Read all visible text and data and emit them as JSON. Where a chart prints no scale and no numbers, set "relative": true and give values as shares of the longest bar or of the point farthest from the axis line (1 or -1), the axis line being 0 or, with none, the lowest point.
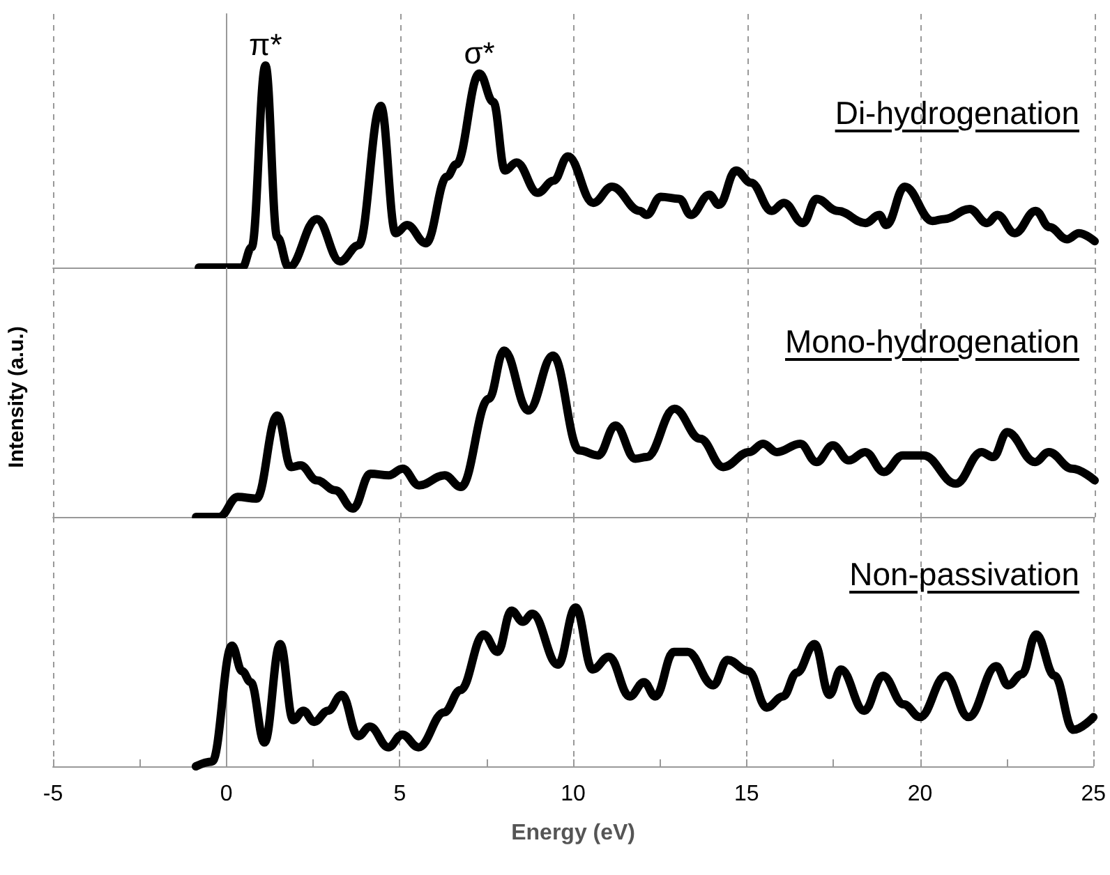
{
  "chart_data": [
    {
      "type": "line",
      "relative": true,
      "marker": "none",
      "grid": "x",
      "tick_labels": false,
      "xlim": [
        -5,
        25
      ],
      "xticks": [
        -5,
        0,
        5,
        10,
        15,
        20,
        25
      ],
      "annotations": [
        {
          "text": "π*",
          "x": 1.12,
          "y": 1.0
        },
        {
          "text": "σ*",
          "x": 7.28,
          "y": 0.96
        }
      ],
      "series": [
        {
          "name": "Di-hydrogenation",
          "color": "#000000",
          "x": [
            -0.8,
            0.45,
            0.72,
            1.12,
            1.46,
            1.79,
            2.6,
            3.27,
            3.8,
            4.44,
            4.87,
            5.2,
            5.74,
            6.35,
            6.61,
            7.28,
            7.68,
            8.02,
            8.35,
            8.96,
            9.42,
            9.83,
            10.56,
            11.1,
            11.9,
            12.1,
            12.5,
            13.04,
            13.37,
            13.9,
            14.18,
            14.67,
            15.1,
            15.7,
            16.05,
            16.6,
            16.99,
            17.6,
            18.4,
            18.8,
            19.0,
            19.53,
            20.33,
            20.67,
            21.4,
            21.9,
            22.2,
            22.7,
            23.3,
            23.7,
            24.2,
            24.55,
            25.0
          ],
          "values": [
            0,
            0,
            0.1,
            1.0,
            0.15,
            0.0,
            0.24,
            0.03,
            0.11,
            0.8,
            0.17,
            0.21,
            0.12,
            0.45,
            0.51,
            0.96,
            0.82,
            0.48,
            0.52,
            0.37,
            0.43,
            0.55,
            0.32,
            0.4,
            0.28,
            0.26,
            0.35,
            0.34,
            0.26,
            0.36,
            0.31,
            0.48,
            0.42,
            0.28,
            0.32,
            0.22,
            0.34,
            0.28,
            0.22,
            0.26,
            0.21,
            0.4,
            0.23,
            0.24,
            0.29,
            0.22,
            0.26,
            0.17,
            0.28,
            0.2,
            0.14,
            0.17,
            0.13
          ]
        }
      ]
    },
    {
      "type": "line",
      "relative": true,
      "marker": "none",
      "grid": "x",
      "tick_labels": false,
      "xlim": [
        -5,
        25
      ],
      "xticks": [
        -5,
        0,
        5,
        10,
        15,
        20,
        25
      ],
      "ylabel": "Intensity (a.u.)",
      "series": [
        {
          "name": "Mono-hydrogenation",
          "color": "#000000",
          "x": [
            -0.88,
            -0.21,
            0.32,
            0.86,
            1.46,
            1.86,
            2.13,
            2.6,
            3.13,
            3.64,
            4.14,
            4.67,
            5.07,
            5.54,
            6.28,
            6.75,
            7.55,
            7.99,
            8.69,
            9.4,
            10.16,
            10.7,
            11.2,
            11.77,
            12.1,
            12.9,
            13.64,
            14.3,
            15.05,
            15.45,
            15.85,
            16.52,
            16.99,
            17.46,
            17.92,
            18.39,
            18.93,
            19.47,
            20.07,
            21.0,
            21.74,
            22.08,
            22.48,
            23.28,
            23.68,
            24.35,
            25.0
          ],
          "values": [
            0,
            0,
            0.12,
            0.11,
            0.61,
            0.3,
            0.31,
            0.22,
            0.16,
            0.05,
            0.26,
            0.25,
            0.29,
            0.19,
            0.25,
            0.18,
            0.71,
            1.0,
            0.64,
            0.97,
            0.4,
            0.37,
            0.55,
            0.35,
            0.36,
            0.65,
            0.47,
            0.3,
            0.39,
            0.44,
            0.39,
            0.44,
            0.33,
            0.43,
            0.34,
            0.39,
            0.27,
            0.37,
            0.37,
            0.2,
            0.39,
            0.36,
            0.51,
            0.33,
            0.39,
            0.29,
            0.22
          ]
        }
      ]
    },
    {
      "type": "line",
      "relative": true,
      "marker": "none",
      "grid": "x",
      "xlim": [
        -5,
        25
      ],
      "xlabel": "Energy (eV)",
      "xticks": [
        -5,
        {
          "value": -2.5,
          "label": null
        },
        0,
        {
          "value": 2.5,
          "label": null
        },
        5,
        {
          "value": 7.5,
          "label": null
        },
        10,
        {
          "value": 12.5,
          "label": null
        },
        15,
        {
          "value": 17.5,
          "label": null
        },
        20,
        {
          "value": 22.5,
          "label": null
        },
        25
      ],
      "series": [
        {
          "name": "Non-passivation",
          "color": "#000000",
          "x": [
            -0.88,
            -0.41,
            0.16,
            0.45,
            0.7,
            1.1,
            1.55,
            1.93,
            2.22,
            2.53,
            2.93,
            3.33,
            3.8,
            4.14,
            4.67,
            5.07,
            5.54,
            6.28,
            6.75,
            7.42,
            7.82,
            8.22,
            8.55,
            8.82,
            9.56,
            10.07,
            10.56,
            11.03,
            11.63,
            12.04,
            12.37,
            12.9,
            13.3,
            14.04,
            14.45,
            15.05,
            15.58,
            16.05,
            16.45,
            16.96,
            17.39,
            17.72,
            18.39,
            18.93,
            19.53,
            20.0,
            20.74,
            21.4,
            22.2,
            22.54,
            22.94,
            23.35,
            23.88,
            24.42,
            25.0
          ],
          "values": [
            0,
            0.03,
            0.76,
            0.6,
            0.53,
            0.15,
            0.77,
            0.29,
            0.35,
            0.28,
            0.35,
            0.45,
            0.19,
            0.25,
            0.12,
            0.2,
            0.12,
            0.34,
            0.48,
            0.83,
            0.72,
            0.98,
            0.91,
            0.96,
            0.64,
            1.0,
            0.61,
            0.69,
            0.44,
            0.53,
            0.44,
            0.72,
            0.72,
            0.51,
            0.67,
            0.6,
            0.37,
            0.44,
            0.59,
            0.77,
            0.45,
            0.61,
            0.35,
            0.57,
            0.39,
            0.31,
            0.57,
            0.31,
            0.63,
            0.51,
            0.58,
            0.83,
            0.57,
            0.23,
            0.31
          ]
        }
      ]
    }
  ]
}
